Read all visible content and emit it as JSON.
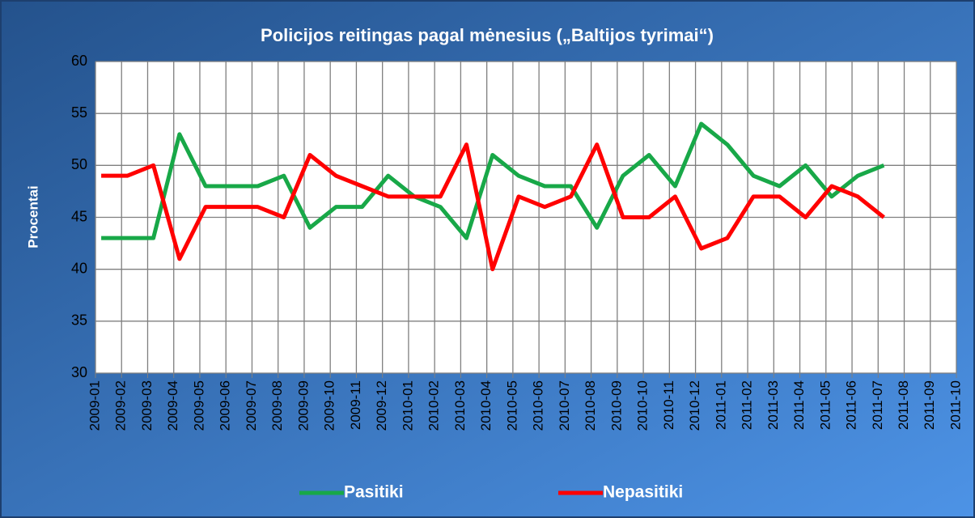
{
  "chart_data": {
    "type": "line",
    "title": "Policijos reitingas pagal mėnesius („Baltijos tyrimai“)",
    "y_label": "Procentai",
    "categories": [
      "2009-01",
      "2009-02",
      "2009-03",
      "2009-04",
      "2009-05",
      "2009-06",
      "2009-07",
      "2009-08",
      "2009-09",
      "2009-10",
      "2009-11",
      "2009-12",
      "2010-01",
      "2010-02",
      "2010-03",
      "2010-04",
      "2010-05",
      "2010-06",
      "2010-07",
      "2010-08",
      "2010-09",
      "2010-10",
      "2010-11",
      "2010-12",
      "2011-01",
      "2011-02",
      "2011-03",
      "2011-04",
      "2011-05",
      "2011-06",
      "2011-07",
      "2011-08",
      "2011-09",
      "2011-10"
    ],
    "series": [
      {
        "name": "Pasitiki",
        "color": "#18a848",
        "values": [
          43,
          43,
          43,
          53,
          48,
          48,
          48,
          49,
          44,
          46,
          46,
          49,
          47,
          46,
          43,
          51,
          49,
          48,
          48,
          44,
          49,
          51,
          48,
          54,
          52,
          49,
          48,
          50,
          47,
          49,
          50,
          null,
          null,
          null
        ]
      },
      {
        "name": "Nepasitiki",
        "color": "#ff0000",
        "values": [
          49,
          49,
          50,
          41,
          46,
          46,
          46,
          45,
          51,
          49,
          48,
          47,
          47,
          47,
          52,
          40,
          47,
          46,
          47,
          52,
          45,
          45,
          47,
          42,
          43,
          47,
          47,
          45,
          48,
          47,
          45,
          null,
          null,
          null
        ]
      }
    ],
    "ylim": [
      30,
      60
    ],
    "yticks": [
      30,
      35,
      40,
      45,
      50,
      55,
      60
    ],
    "grid": true,
    "legend": "bottom"
  }
}
